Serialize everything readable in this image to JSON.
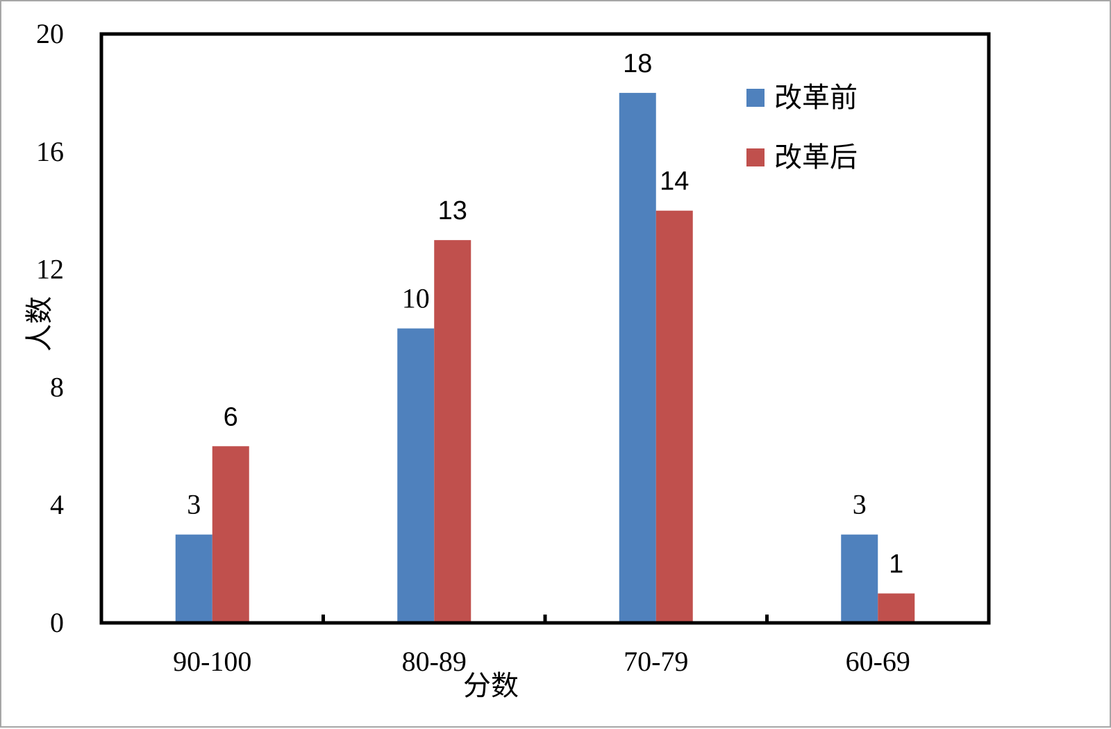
{
  "chart_data": {
    "type": "bar",
    "xlabel": "分数",
    "ylabel": "人数",
    "ylim": [
      0,
      20
    ],
    "yticks": [
      0,
      4,
      8,
      12,
      16,
      20
    ],
    "categories": [
      "90-100",
      "80-89",
      "70-79",
      "60-69"
    ],
    "series": [
      {
        "name": "改革前",
        "color": "#4f81bd",
        "values": [
          3,
          10,
          18,
          3
        ],
        "value_labels": [
          "3",
          "10",
          "18",
          "3"
        ]
      },
      {
        "name": "改革后",
        "color": "#c0504d",
        "values": [
          6,
          13,
          14,
          1
        ],
        "value_labels": [
          "6",
          "13",
          "14",
          "1"
        ]
      }
    ],
    "legend_position": "top-right",
    "grid": false
  }
}
